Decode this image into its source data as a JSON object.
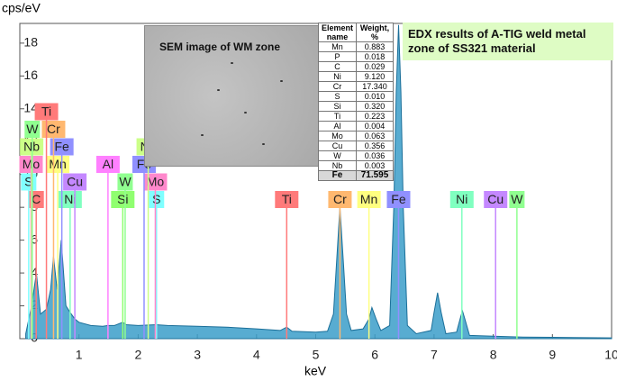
{
  "chart_data": {
    "type": "area",
    "ylabel": "cps/eV",
    "xlabel": "keV",
    "color": "#3b9dc9",
    "line_color": "#1b6f99",
    "xlim": [
      0,
      10
    ],
    "ylim": [
      0,
      19.2
    ],
    "xticks": [
      1,
      2,
      3,
      4,
      5,
      6,
      7,
      8,
      9,
      10
    ],
    "yticks": [
      0,
      2,
      4,
      6,
      8,
      10,
      12,
      14,
      16,
      18
    ],
    "x": [
      0.1,
      0.2,
      0.28,
      0.35,
      0.45,
      0.52,
      0.57,
      0.63,
      0.7,
      0.78,
      0.85,
      0.93,
      1.0,
      1.2,
      1.4,
      1.49,
      1.6,
      1.74,
      1.8,
      2.0,
      2.3,
      2.5,
      3.0,
      3.5,
      4.0,
      4.4,
      4.51,
      4.6,
      5.0,
      5.2,
      5.3,
      5.35,
      5.41,
      5.47,
      5.52,
      5.6,
      5.8,
      5.9,
      5.95,
      6.02,
      6.1,
      6.25,
      6.32,
      6.36,
      6.4,
      6.44,
      6.48,
      6.55,
      6.7,
      6.95,
      7.0,
      7.06,
      7.12,
      7.2,
      7.38,
      7.44,
      7.48,
      7.52,
      7.6,
      8.0,
      8.5,
      9.0,
      10.0
    ],
    "values": [
      0.3,
      2,
      4,
      1.5,
      1.8,
      3,
      5,
      3,
      6,
      2,
      1.6,
      1.2,
      1.0,
      0.8,
      0.75,
      0.8,
      0.8,
      1.0,
      0.85,
      0.8,
      0.85,
      0.8,
      0.75,
      0.7,
      0.6,
      0.5,
      0.7,
      0.45,
      0.4,
      0.45,
      1.5,
      4.5,
      8.0,
      4.5,
      1.5,
      0.5,
      0.6,
      1.2,
      1.9,
      1.2,
      0.5,
      0.8,
      8,
      15,
      19.1,
      15,
      8,
      0.8,
      0.3,
      0.5,
      1.6,
      2.8,
      1.6,
      0.3,
      0.4,
      1.2,
      1.7,
      1.2,
      0.2,
      0.15,
      0.1,
      0.08,
      0.05
    ],
    "markers": [
      {
        "label": "Ti",
        "energy": 4.51,
        "color": "#ff7a7a"
      },
      {
        "label": "Cr",
        "energy": 5.41,
        "color": "#ffb870"
      },
      {
        "label": "Mn",
        "energy": 5.9,
        "color": "#ffff80"
      },
      {
        "label": "Fe",
        "energy": 6.4,
        "color": "#9090ff"
      },
      {
        "label": "Ni",
        "energy": 7.47,
        "color": "#80ffc0"
      },
      {
        "label": "Cu",
        "energy": 8.04,
        "color": "#c488ff"
      },
      {
        "label": "W",
        "energy": 8.4,
        "color": "#90ff90"
      },
      {
        "label": "Si",
        "energy": 1.74,
        "color": "#90ff70"
      },
      {
        "label": "S",
        "energy": 2.31,
        "color": "#80ffff"
      },
      {
        "label": "Mo",
        "energy": 2.29,
        "color": "#ff88cc"
      },
      {
        "label": "Fe",
        "energy": 2.1,
        "color": "#9090ff"
      },
      {
        "label": "Nb",
        "energy": 2.17,
        "color": "#ccff88"
      },
      {
        "label": "W",
        "energy": 1.78,
        "color": "#90ff90"
      },
      {
        "label": "Al",
        "energy": 1.49,
        "color": "#ff80ff"
      },
      {
        "label": "C",
        "energy": 0.277,
        "color": "#ff7a7a"
      },
      {
        "label": "S",
        "energy": 0.15,
        "color": "#80ffff"
      },
      {
        "label": "Ni",
        "energy": 0.85,
        "color": "#80ffc0"
      },
      {
        "label": "Cu",
        "energy": 0.93,
        "color": "#c488ff"
      },
      {
        "label": "Mn",
        "energy": 0.64,
        "color": "#ffff80"
      },
      {
        "label": "Fe",
        "energy": 0.71,
        "color": "#9090ff"
      },
      {
        "label": "Cr",
        "energy": 0.57,
        "color": "#ffb870"
      },
      {
        "label": "Mo",
        "energy": 0.19,
        "color": "#ff88cc"
      },
      {
        "label": "Nb",
        "energy": 0.2,
        "color": "#ccff88"
      },
      {
        "label": "Ti",
        "energy": 0.45,
        "color": "#ff7a7a"
      },
      {
        "label": "W",
        "energy": 0.21,
        "color": "#90ff90"
      }
    ]
  },
  "inset": {
    "image_caption": "SEM image of WM zone",
    "note": "EDX results of A-TIG weld metal zone of SS321 material",
    "table": {
      "header": [
        "Element name",
        "Weight, %"
      ],
      "rows": [
        [
          "Mn",
          "0.883"
        ],
        [
          "P",
          "0.018"
        ],
        [
          "C",
          "0.029"
        ],
        [
          "Ni",
          "9.120"
        ],
        [
          "Cr",
          "17.340"
        ],
        [
          "S",
          "0.010"
        ],
        [
          "Si",
          "0.320"
        ],
        [
          "Ti",
          "0.223"
        ],
        [
          "Al",
          "0.004"
        ],
        [
          "Mo",
          "0.063"
        ],
        [
          "Cu",
          "0.356"
        ],
        [
          "W",
          "0.036"
        ],
        [
          "Nb",
          "0.003"
        ],
        [
          "Fe",
          "71.595"
        ]
      ]
    }
  }
}
